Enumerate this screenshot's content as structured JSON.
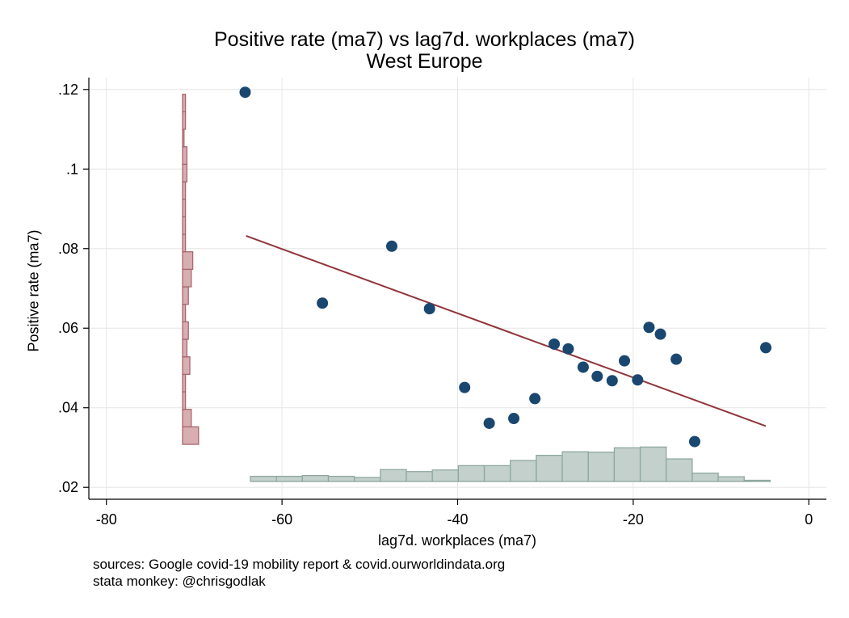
{
  "title": "Positive rate (ma7) vs lag7d. workplaces (ma7)",
  "subtitle": "West Europe",
  "notes": [
    "sources: Google covid-19 mobility report & covid.ourworldindata.org",
    "stata monkey: @chrisgodlak"
  ],
  "colors": {
    "marker": "#1a476f",
    "fit": "#90353b",
    "hist_x_fill": "#c3d0cc",
    "hist_x_edge": "#8ea89f",
    "hist_y_fill": "#d8aeb2",
    "hist_y_edge": "#a8676d",
    "grid": "#e6e6e6"
  },
  "chart_data": {
    "type": "scatter",
    "xlabel": "lag7d. workplaces (ma7)",
    "ylabel": "Positive rate (ma7)",
    "xlim": [
      -82,
      2
    ],
    "ylim": [
      0.017,
      0.123
    ],
    "xticks": [
      -80,
      -60,
      -40,
      -20,
      0
    ],
    "xtick_labels": [
      "-80",
      "-60",
      "-40",
      "-20",
      "0"
    ],
    "yticks": [
      0.02,
      0.04,
      0.06,
      0.08,
      0.1,
      0.12
    ],
    "ytick_labels": [
      ".02",
      ".04",
      ".06",
      ".08",
      ".1",
      ".12"
    ],
    "grid": true,
    "points": [
      {
        "x": -64.2,
        "y": 0.1193
      },
      {
        "x": -55.4,
        "y": 0.0663
      },
      {
        "x": -47.5,
        "y": 0.0806
      },
      {
        "x": -43.2,
        "y": 0.0649
      },
      {
        "x": -39.2,
        "y": 0.0451
      },
      {
        "x": -36.4,
        "y": 0.0361
      },
      {
        "x": -33.6,
        "y": 0.0373
      },
      {
        "x": -31.2,
        "y": 0.0423
      },
      {
        "x": -29.0,
        "y": 0.056
      },
      {
        "x": -27.4,
        "y": 0.0548
      },
      {
        "x": -25.7,
        "y": 0.0502
      },
      {
        "x": -24.1,
        "y": 0.0479
      },
      {
        "x": -22.4,
        "y": 0.0468
      },
      {
        "x": -21.0,
        "y": 0.0518
      },
      {
        "x": -19.5,
        "y": 0.047
      },
      {
        "x": -18.2,
        "y": 0.0602
      },
      {
        "x": -16.9,
        "y": 0.0585
      },
      {
        "x": -15.1,
        "y": 0.0522
      },
      {
        "x": -13.0,
        "y": 0.0315
      },
      {
        "x": -4.9,
        "y": 0.0551
      }
    ],
    "fit_line": {
      "x": [
        -64.1,
        -4.9
      ],
      "y": [
        0.0832,
        0.0354
      ]
    },
    "x_histogram": {
      "bin_start": -63.6,
      "bin_width": 2.96,
      "heights": [
        1.3,
        1.3,
        1.5,
        1.3,
        1.0,
        3.0,
        2.5,
        2.9,
        4.0,
        4.0,
        5.3,
        6.6,
        7.5,
        7.4,
        8.5,
        8.7,
        5.7,
        2.1,
        1.2,
        0.3
      ]
    },
    "y_histogram": {
      "bin_start": 0.0308,
      "bin_width": 0.0044,
      "heights": [
        11,
        6,
        2,
        2,
        5,
        3,
        4,
        2,
        4,
        6,
        7,
        2,
        2,
        2,
        2,
        3,
        3,
        1,
        2,
        2
      ]
    }
  }
}
